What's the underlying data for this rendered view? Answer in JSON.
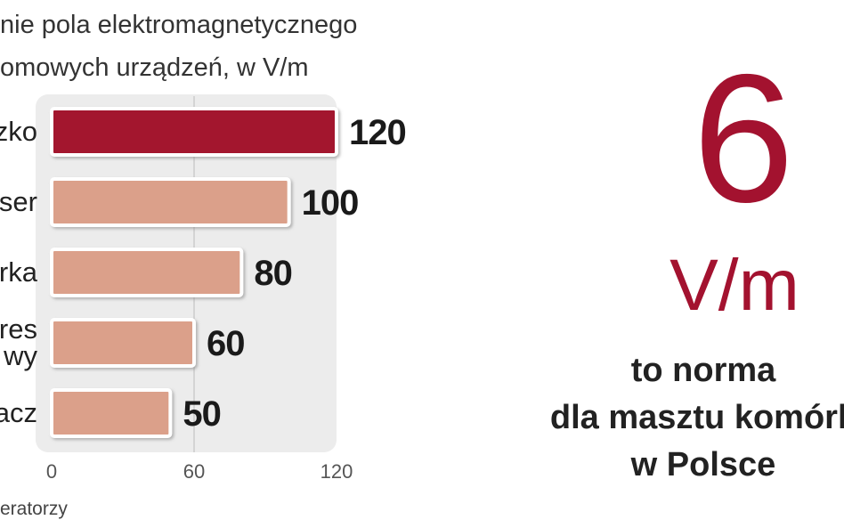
{
  "chart_data": {
    "type": "bar",
    "orientation": "horizontal",
    "title": "nie pola elektromagnetycznego\nomowych urządzeń, w V/m",
    "categories": [
      "zko",
      "ser",
      "rka",
      "res\nwy",
      "acz"
    ],
    "values": [
      120,
      100,
      80,
      60,
      50
    ],
    "colors": [
      "#a3122f",
      "#dba08a",
      "#dba08a",
      "#dba08a",
      "#dba08a"
    ],
    "xlim": [
      0,
      120
    ],
    "xticks": [
      0,
      60,
      120
    ],
    "grid": true,
    "source": "eratorzy",
    "highlight_number": "6",
    "highlight_unit": "V/m",
    "highlight_note": "to norma\ndla masztu komórk\nw Polsce"
  }
}
